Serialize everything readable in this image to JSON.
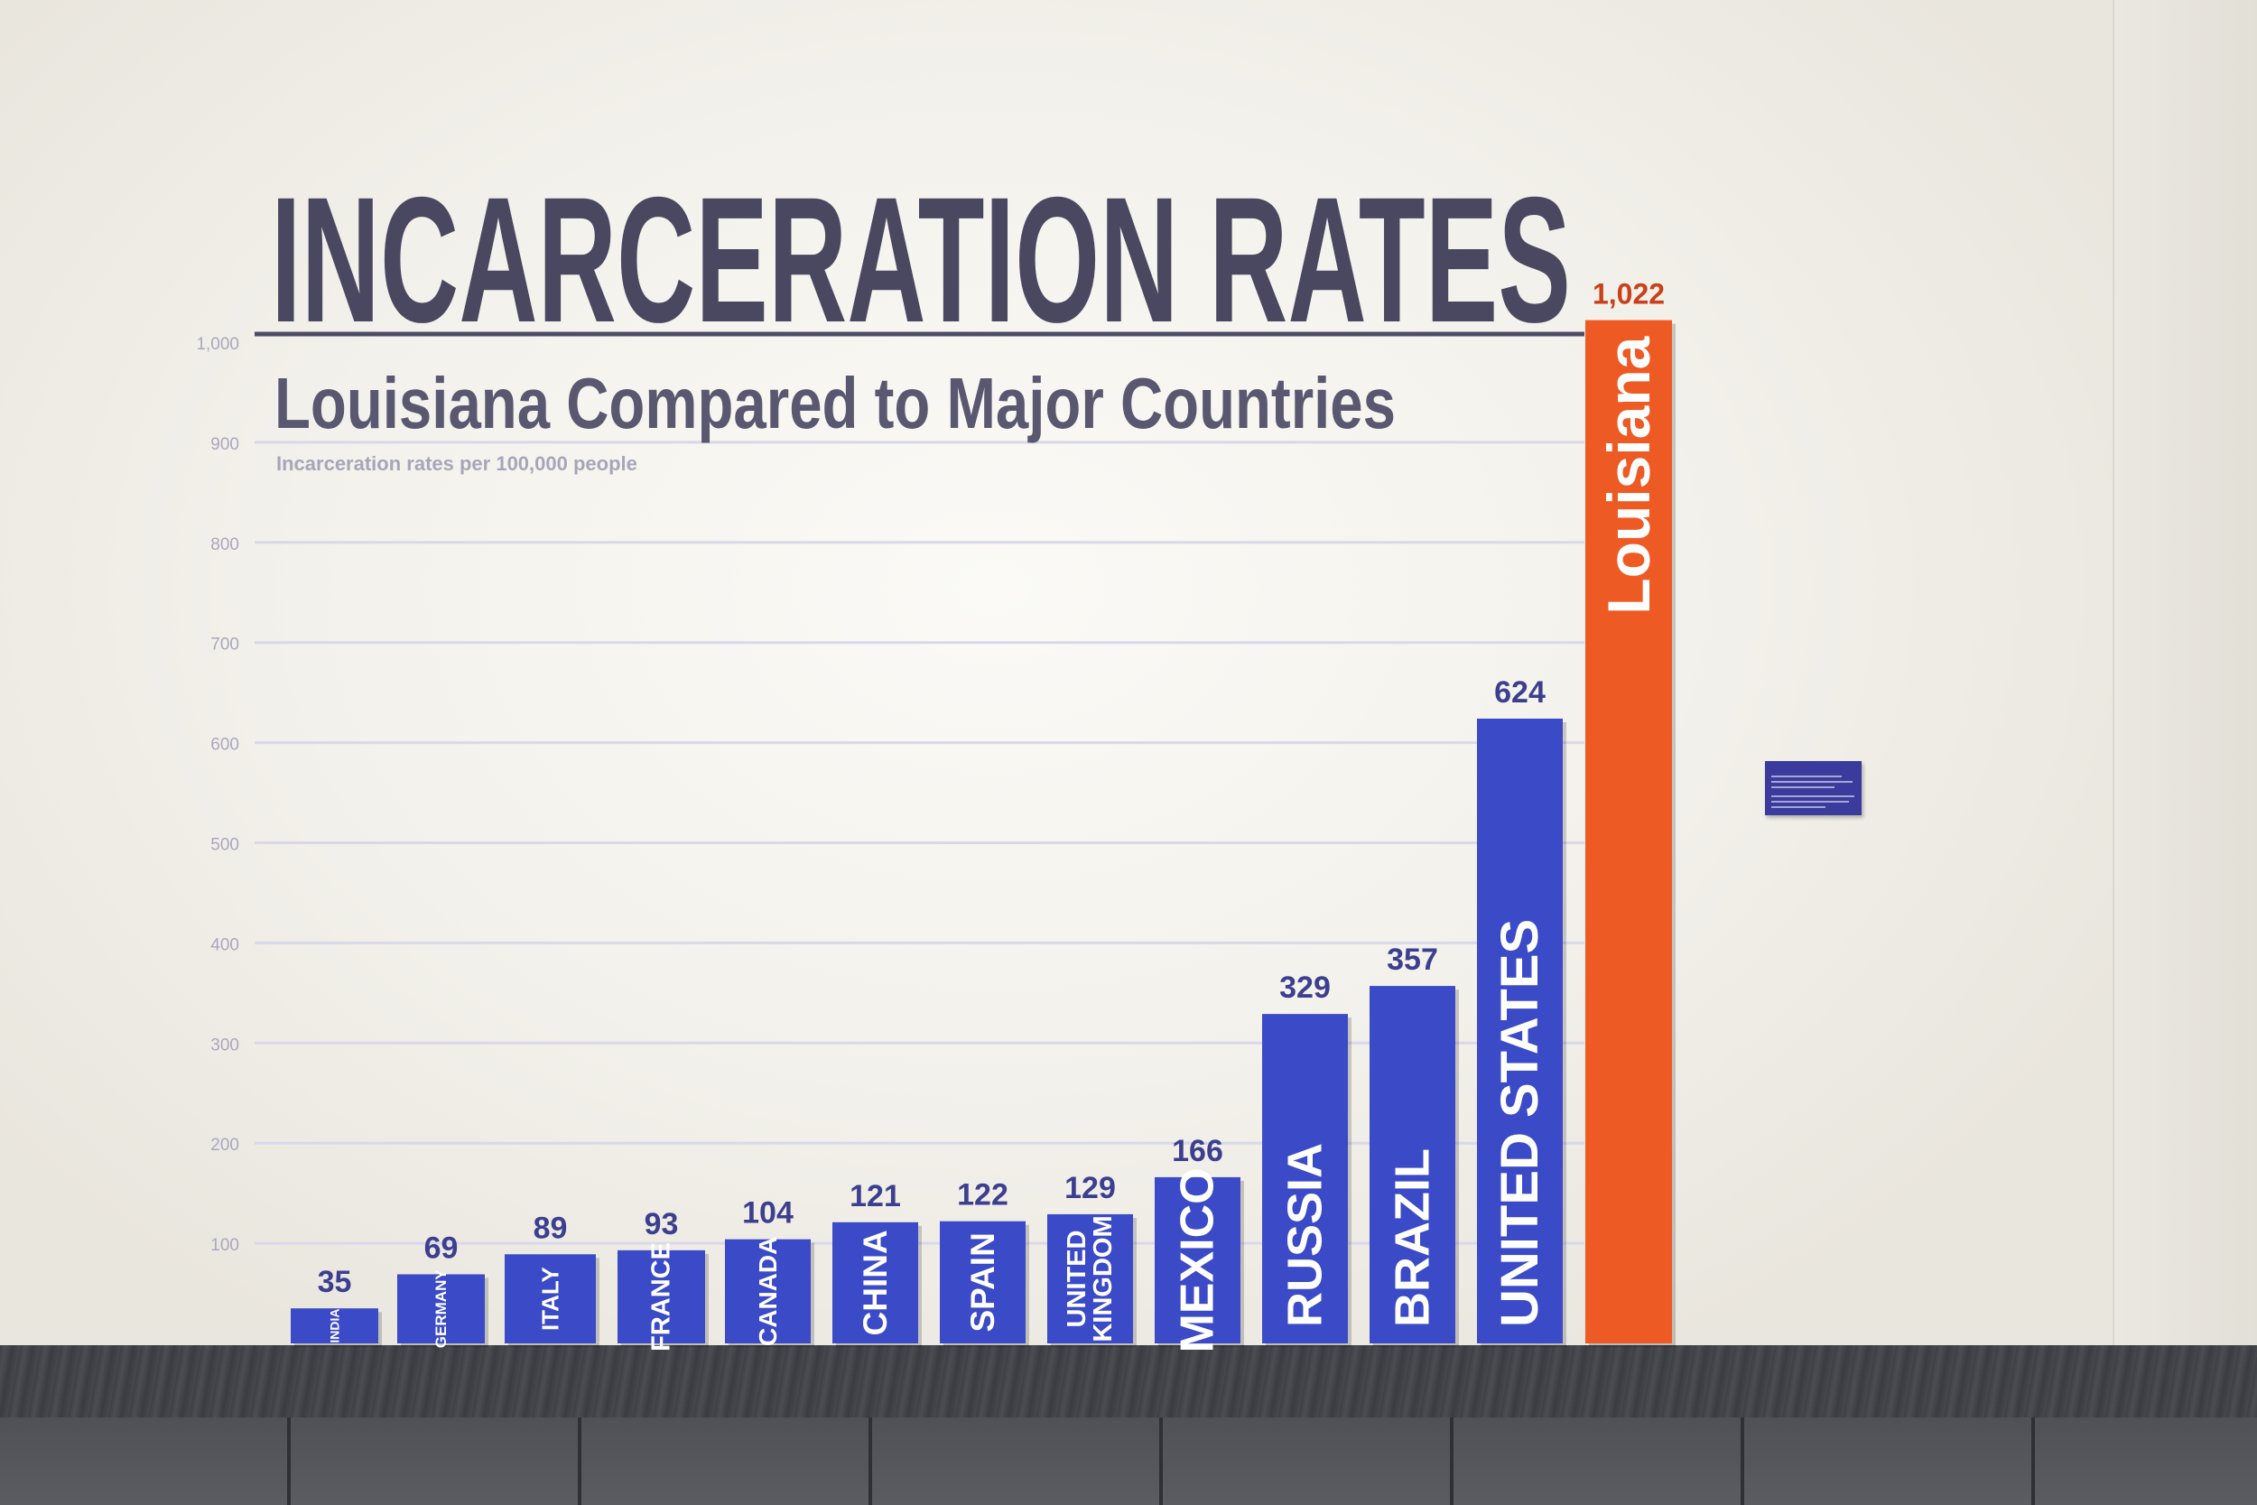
{
  "exhibit": {
    "title": "INCARCERATION RATES",
    "subtitle": "Louisiana Compared to Major Countries",
    "note": "Incarceration rates per 100,000 people",
    "colors": {
      "country_bar": "#3b4ac6",
      "accent_bar": "#ee5a24",
      "title": "#4a4860",
      "gridline": "#d9d8ea"
    }
  },
  "chart_data": {
    "type": "bar",
    "title": "INCARCERATION RATES",
    "subtitle": "Louisiana Compared to Major Countries",
    "ylabel": "Incarceration rates per 100,000 people",
    "ylim": [
      0,
      1000
    ],
    "y_ticks": [
      {
        "value": 100,
        "label": "100"
      },
      {
        "value": 200,
        "label": "200"
      },
      {
        "value": 300,
        "label": "300"
      },
      {
        "value": 400,
        "label": "400"
      },
      {
        "value": 500,
        "label": "500"
      },
      {
        "value": 600,
        "label": "600"
      },
      {
        "value": 700,
        "label": "700"
      },
      {
        "value": 800,
        "label": "800"
      },
      {
        "value": 900,
        "label": "900"
      },
      {
        "value": 1000,
        "label": "1,000"
      }
    ],
    "grid": true,
    "bars": [
      {
        "category": [
          "INDIA"
        ],
        "value": 35,
        "value_label": "35"
      },
      {
        "category": [
          "GERMANY"
        ],
        "value": 69,
        "value_label": "69"
      },
      {
        "category": [
          "ITALY"
        ],
        "value": 89,
        "value_label": "89"
      },
      {
        "category": [
          "FRANCE"
        ],
        "value": 93,
        "value_label": "93"
      },
      {
        "category": [
          "CANADA"
        ],
        "value": 104,
        "value_label": "104"
      },
      {
        "category": [
          "CHINA"
        ],
        "value": 121,
        "value_label": "121"
      },
      {
        "category": [
          "SPAIN"
        ],
        "value": 122,
        "value_label": "122"
      },
      {
        "category": [
          "UNITED",
          "KINGDOM"
        ],
        "value": 129,
        "value_label": "129"
      },
      {
        "category": [
          "MEXICO"
        ],
        "value": 166,
        "value_label": "166"
      },
      {
        "category": [
          "RUSSIA"
        ],
        "value": 329,
        "value_label": "329"
      },
      {
        "category": [
          "BRAZIL"
        ],
        "value": 357,
        "value_label": "357"
      },
      {
        "category": [
          "UNITED STATES"
        ],
        "value": 624,
        "value_label": "624"
      },
      {
        "category": [
          "Louisiana"
        ],
        "value": 1022,
        "value_label": "1,022",
        "highlight": true
      }
    ]
  }
}
